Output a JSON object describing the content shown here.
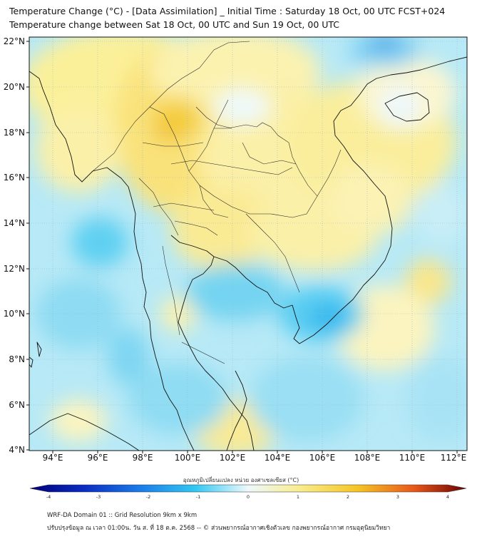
{
  "header": {
    "title_line1": "Temperature Change (°C) - [Data Assimilation] _ Initial Time : Saturday 18 Oct, 00 UTC FCST+024",
    "title_line2": "Temperature change between Sat 18 Oct, 00 UTC and Sun 19 Oct, 00 UTC"
  },
  "map": {
    "lat_labels": [
      "22°N",
      "20°N",
      "18°N",
      "16°N",
      "14°N",
      "12°N",
      "10°N",
      "8°N",
      "6°N",
      "4°N"
    ],
    "lon_labels": [
      "94°E",
      "96°E",
      "98°E",
      "100°E",
      "102°E",
      "104°E",
      "106°E",
      "108°E",
      "110°E",
      "112°E"
    ]
  },
  "colorbar": {
    "label": "อุณหภูมิเปลี่ยนแปลง หน่วย องศาเซลเซียส (°C)",
    "ticks": [
      "-4",
      "-3",
      "-2",
      "-1",
      "0",
      "1",
      "2",
      "3",
      "4"
    ],
    "colors": [
      "#00007a",
      "#0a2ac0",
      "#1a7ae8",
      "#33c8f2",
      "#e6f7fc",
      "#fbf6c2",
      "#f7d53a",
      "#f08a18",
      "#d02a10",
      "#6a0000"
    ]
  },
  "footer": {
    "line1": "WRF-DA Domain 01 :: Grid Resolution 9km x 9km",
    "line2": "ปรับปรุงข้อมูล ณ เวลา 01:00น. วัน ส. ที่ 18 ต.ค. 2568 -- © ส่วนพยากรณ์อากาศเชิงตัวเลข กองพยากรณ์อากาศ กรมอุตุนิยมวิทยา"
  }
}
